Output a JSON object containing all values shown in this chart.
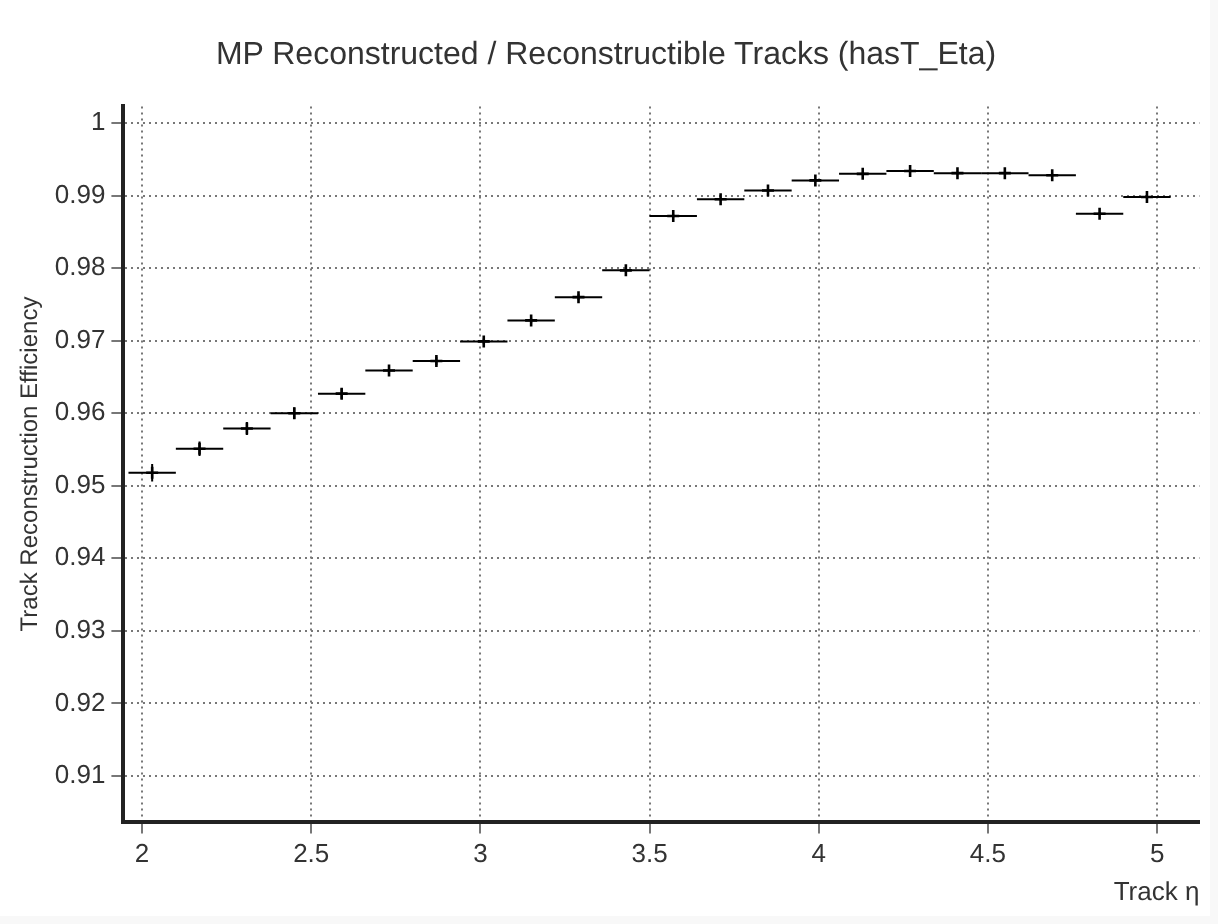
{
  "chart_data": {
    "type": "scatter",
    "title": "MP Reconstructed / Reconstructible Tracks (hasT_Eta)",
    "xlabel": "Track η",
    "ylabel": "Track Reconstruction Efficiency",
    "x": [
      2.03,
      2.17,
      2.31,
      2.45,
      2.59,
      2.73,
      2.87,
      3.01,
      3.15,
      3.29,
      3.43,
      3.57,
      3.71,
      3.85,
      3.99,
      4.13,
      4.27,
      4.41,
      4.55,
      4.69,
      4.83,
      4.97
    ],
    "series": [
      {
        "color": "#000000",
        "values": [
          0.9518,
          0.9551,
          0.9579,
          0.96,
          0.9627,
          0.9659,
          0.9672,
          0.9699,
          0.9728,
          0.976,
          0.9797,
          0.9872,
          0.9895,
          0.9907,
          0.9921,
          0.993,
          0.9934,
          0.9931,
          0.9931,
          0.9928,
          0.9875,
          0.9898
        ],
        "errors": [
          0.0012,
          0.001,
          0.0009,
          0.0008,
          0.0007,
          0.0006,
          0.0006,
          0.0004,
          0.0004,
          0.0004,
          0.0002,
          0.0002,
          0.0002,
          0.0002,
          0.0002,
          0.0002,
          0.0002,
          0.0002,
          0.0002,
          0.0002,
          0.0002,
          0.0003
        ],
        "xerrors": [
          0.07,
          0.07,
          0.07,
          0.07,
          0.07,
          0.07,
          0.07,
          0.07,
          0.07,
          0.07,
          0.07,
          0.07,
          0.07,
          0.07,
          0.07,
          0.07,
          0.07,
          0.07,
          0.07,
          0.07,
          0.07,
          0.07
        ]
      }
    ],
    "xlim": [
      1.945,
      5.125
    ],
    "xticks": [
      2,
      2.5,
      3,
      3.5,
      4,
      4.5,
      5
    ],
    "ylim": [
      0.9037,
      1.0023
    ],
    "yticks": [
      0.91,
      0.92,
      0.93,
      0.94,
      0.95,
      0.96,
      0.97,
      0.98,
      0.99,
      1
    ],
    "grid": true,
    "legend": false,
    "marker": "cross"
  }
}
